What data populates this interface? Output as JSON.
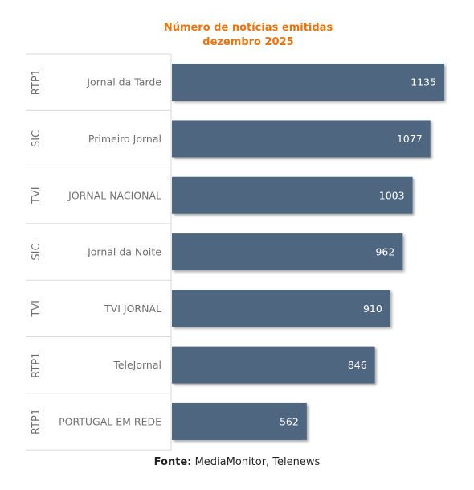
{
  "chart_data": {
    "type": "bar",
    "orientation": "horizontal",
    "title": "Número de notícias emitidas",
    "subtitle": "dezembro 2025",
    "groups": [
      "RTP1",
      "SIC",
      "TVI",
      "SIC",
      "TVI",
      "RTP1",
      "RTP1"
    ],
    "categories": [
      "Jornal da Tarde",
      "Primeiro Jornal",
      "JORNAL NACIONAL",
      "Jornal da Noite",
      "TVI JORNAL",
      "TeleJornal",
      "PORTUGAL EM REDE"
    ],
    "values": [
      1135,
      1077,
      1003,
      962,
      910,
      846,
      562
    ],
    "xlim": [
      0,
      1135
    ],
    "bar_color": "#4F6681",
    "title_color": "#E8740C",
    "grid": false
  },
  "source": {
    "label": "Fonte:",
    "text": "MediaMonitor, Telenews"
  }
}
